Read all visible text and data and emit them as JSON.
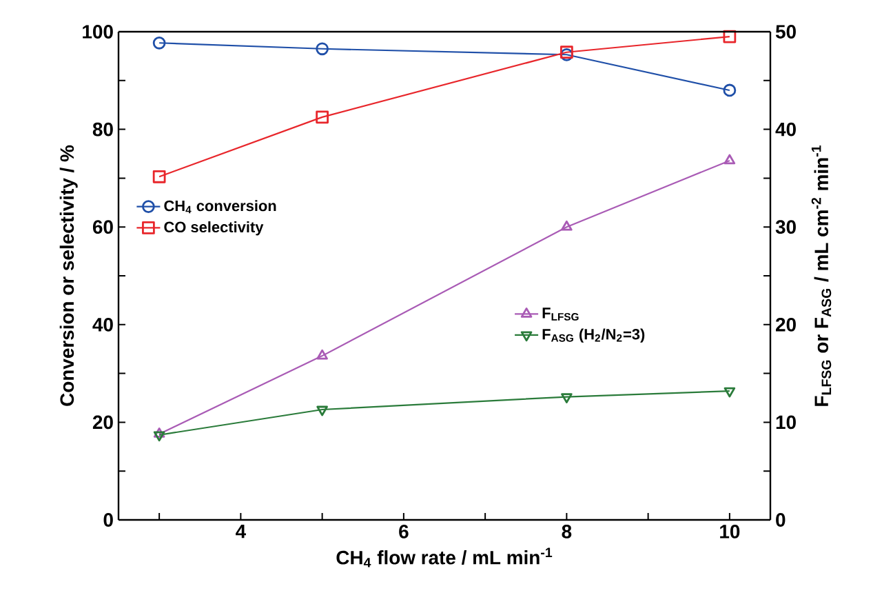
{
  "chart_data": {
    "type": "line",
    "xlabel": "CH$_{4}$ flow rate / mL min$^{-1}$",
    "ylabel": "Conversion or selectivity / %",
    "y2label": "F$_{LFSG}$ or F$_{ASG}$ / mL cm$^{-2}$ min$^{-1}$",
    "x": [
      3,
      5,
      8,
      10
    ],
    "xlim": [
      2.5,
      10.5
    ],
    "xticks": [
      {
        "value": 3,
        "label": null
      },
      4,
      {
        "value": 5,
        "label": null
      },
      6,
      {
        "value": 7,
        "label": null
      },
      8,
      {
        "value": 9,
        "label": null
      },
      10
    ],
    "ylim": [
      0,
      100
    ],
    "yticks": [
      0,
      {
        "value": 10,
        "label": null
      },
      20,
      {
        "value": 30,
        "label": null
      },
      40,
      {
        "value": 50,
        "label": null
      },
      60,
      {
        "value": 70,
        "label": null
      },
      80,
      {
        "value": 90,
        "label": null
      },
      100
    ],
    "y2lim": [
      0,
      50
    ],
    "y2ticks": [
      0,
      {
        "value": 5,
        "label": null
      },
      10,
      {
        "value": 15,
        "label": null
      },
      20,
      {
        "value": 25,
        "label": null
      },
      30,
      {
        "value": 35,
        "label": null
      },
      40,
      {
        "value": 45,
        "label": null
      },
      50
    ],
    "legend": "left",
    "series": [
      {
        "name": "CH$_{4}$ conversion",
        "color": "#1f4fa8",
        "marker": "circle",
        "values": [
          97.7,
          96.5,
          95.3,
          88.0
        ]
      },
      {
        "name": "CO selectivity",
        "color": "#e8262b",
        "marker": "square",
        "values": [
          70.3,
          82.5,
          95.8,
          99.0
        ]
      },
      {
        "name": "F$_{LFSG}$",
        "color": "#a95bb5",
        "marker": "triangle",
        "axis": "y2",
        "values": [
          8.8,
          16.8,
          30.0,
          36.8
        ]
      },
      {
        "name": "F$_{ASG}$ (H$_{2}$/N$_{2}$=3)",
        "color": "#2a7b3a",
        "marker": "triangle-down",
        "axis": "y2",
        "values": [
          8.7,
          11.3,
          12.6,
          13.2
        ]
      }
    ]
  }
}
